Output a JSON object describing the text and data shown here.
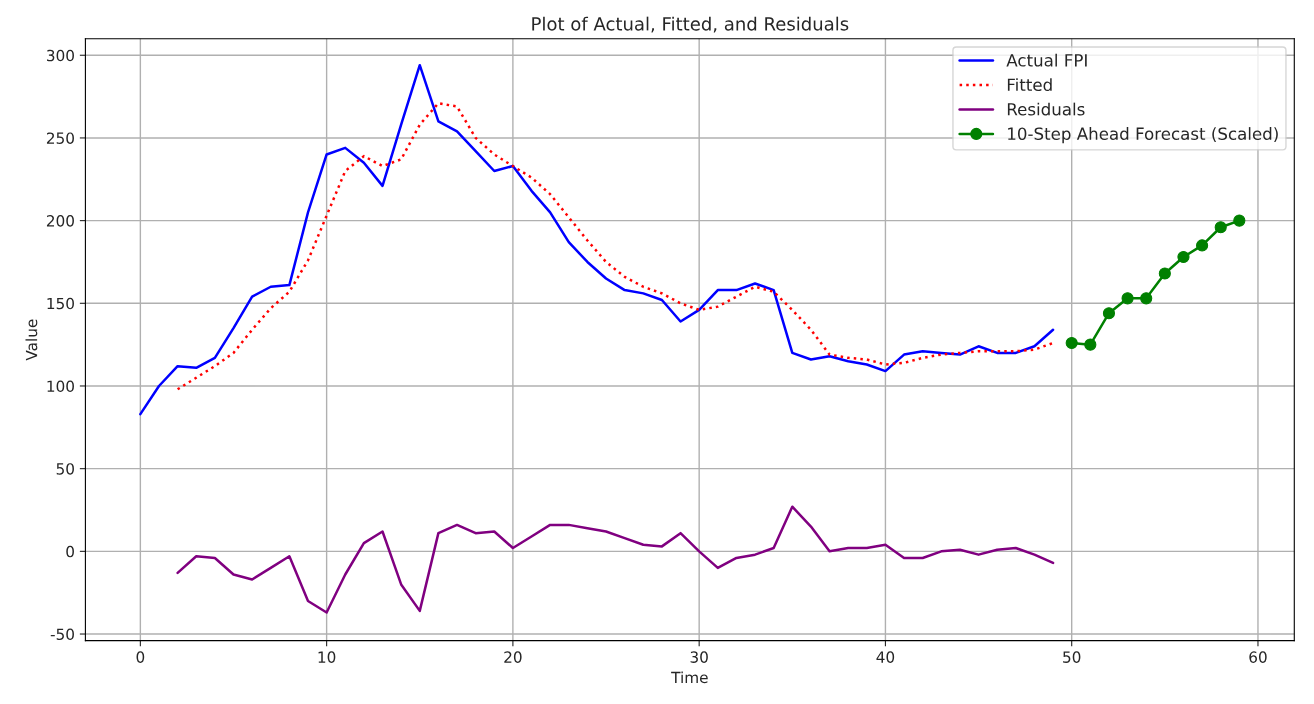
{
  "chart_data": {
    "type": "line",
    "title": "Plot of Actual, Fitted, and Residuals",
    "xlabel": "Time",
    "ylabel": "Value",
    "xlim": [
      -2.95,
      61.95
    ],
    "xticks": [
      0,
      10,
      20,
      30,
      40,
      50,
      60
    ],
    "ylim": [
      -54,
      310
    ],
    "yticks": [
      -50,
      0,
      50,
      100,
      150,
      200,
      250,
      300
    ],
    "grid": true,
    "legend": "top right",
    "series": [
      {
        "name": "Actual FPI",
        "color": "#0000ff",
        "line_style": "solid",
        "marker": "none",
        "x": [
          0,
          1,
          2,
          3,
          4,
          5,
          6,
          7,
          8,
          9,
          10,
          11,
          12,
          13,
          14,
          15,
          16,
          17,
          18,
          19,
          20,
          21,
          22,
          23,
          24,
          25,
          26,
          27,
          28,
          29,
          30,
          31,
          32,
          33,
          34,
          35,
          36,
          37,
          38,
          39,
          40,
          41,
          42,
          43,
          44,
          45,
          46,
          47,
          48,
          49
        ],
        "values": [
          83,
          100,
          112,
          111,
          117,
          135,
          154,
          160,
          161,
          205,
          240,
          244,
          235,
          221,
          258,
          294,
          260,
          254,
          242,
          230,
          233,
          218,
          205,
          187,
          175,
          165,
          158,
          156,
          152,
          139,
          146,
          158,
          158,
          162,
          158,
          120,
          116,
          118,
          115,
          113,
          109,
          119,
          121,
          120,
          119,
          124,
          120,
          120,
          124,
          134
        ]
      },
      {
        "name": "Fitted",
        "color": "#ff0000",
        "line_style": "dotted",
        "marker": "none",
        "x": [
          2,
          3,
          4,
          5,
          6,
          7,
          8,
          9,
          10,
          11,
          12,
          13,
          14,
          15,
          16,
          17,
          18,
          19,
          20,
          21,
          22,
          23,
          24,
          25,
          26,
          27,
          28,
          29,
          30,
          31,
          32,
          33,
          34,
          35,
          36,
          37,
          38,
          39,
          40,
          41,
          42,
          43,
          44,
          45,
          46,
          47,
          48,
          49
        ],
        "values": [
          98,
          105,
          112,
          120,
          134,
          147,
          157,
          176,
          203,
          230,
          239,
          233,
          237,
          258,
          271,
          269,
          250,
          240,
          233,
          226,
          216,
          202,
          188,
          175,
          166,
          160,
          156,
          150,
          146,
          148,
          154,
          160,
          157,
          146,
          134,
          119,
          117,
          116,
          113,
          114,
          117,
          119,
          120,
          121,
          121,
          121,
          122,
          126
        ]
      },
      {
        "name": "Residuals",
        "color": "#800080",
        "line_style": "solid",
        "marker": "none",
        "x": [
          2,
          3,
          4,
          5,
          6,
          7,
          8,
          9,
          10,
          11,
          12,
          13,
          14,
          15,
          16,
          17,
          18,
          19,
          20,
          21,
          22,
          23,
          24,
          25,
          26,
          27,
          28,
          29,
          30,
          31,
          32,
          33,
          34,
          35,
          36,
          37,
          38,
          39,
          40,
          41,
          42,
          43,
          44,
          45,
          46,
          47,
          48,
          49
        ],
        "values": [
          -13,
          -3,
          -4,
          -14,
          -17,
          -10,
          -3,
          -30,
          -37,
          -14,
          5,
          12,
          -20,
          -36,
          11,
          16,
          11,
          12,
          2,
          9,
          16,
          16,
          14,
          12,
          8,
          4,
          3,
          11,
          0,
          -10,
          -4,
          -2,
          2,
          27,
          15,
          0,
          2,
          2,
          4,
          -4,
          -4,
          0,
          1,
          -2,
          1,
          2,
          -2,
          -7
        ]
      },
      {
        "name": "10-Step Ahead Forecast (Scaled)",
        "color": "#008000",
        "line_style": "solid",
        "marker": "circle",
        "x": [
          50,
          51,
          52,
          53,
          54,
          55,
          56,
          57,
          58,
          59
        ],
        "values": [
          126,
          125,
          144,
          153,
          153,
          168,
          178,
          185,
          196,
          200
        ]
      }
    ]
  }
}
